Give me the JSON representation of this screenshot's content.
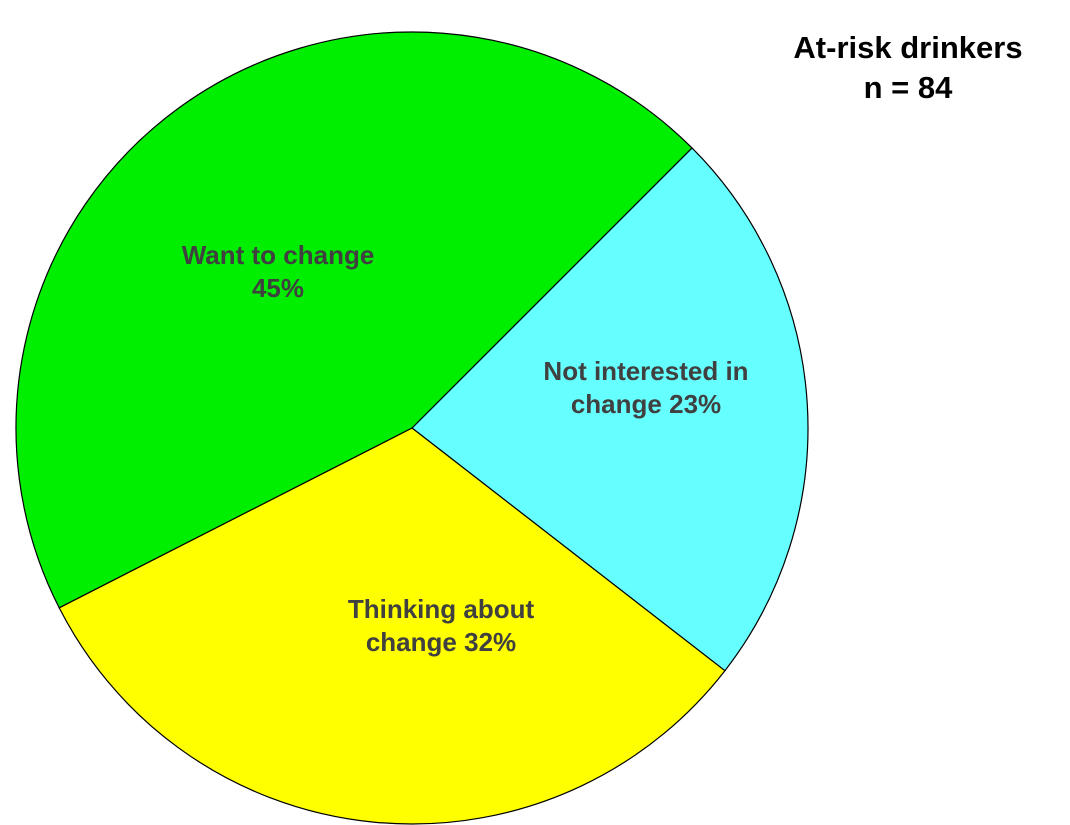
{
  "chart_data": {
    "type": "pie",
    "title": "At-risk drinkers",
    "subtitle": "n = 84",
    "start_angle": 45,
    "categories": [
      "Not interested in change",
      "Thinking about change",
      "Want to change"
    ],
    "values": [
      23,
      32,
      45
    ],
    "value_labels": [
      "23%",
      "32%",
      "45%"
    ],
    "colors": [
      "#66ffff",
      "#ffff00",
      "#00ee00"
    ]
  }
}
